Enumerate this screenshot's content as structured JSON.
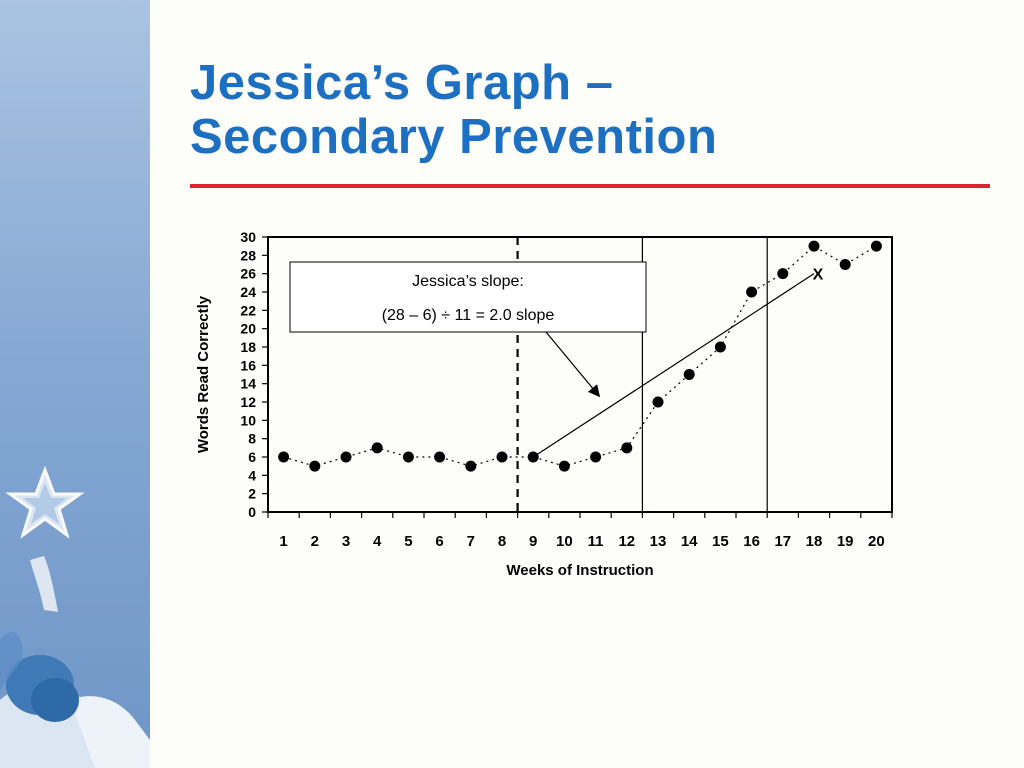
{
  "slide": {
    "title_line1": "Jessica’s Graph –",
    "title_line2": "Secondary Prevention"
  },
  "colors": {
    "title": "#1d6fc2",
    "rule": "#d9262e",
    "sidebar": "#86a9d3",
    "background": "#fdfdf9"
  },
  "chart_data": {
    "type": "line",
    "xlabel": "Weeks of Instruction",
    "ylabel": "Words Read Correctly",
    "x": [
      1,
      2,
      3,
      4,
      5,
      6,
      7,
      8,
      9,
      10,
      11,
      12,
      13,
      14,
      15,
      16,
      17,
      18,
      19,
      20
    ],
    "series": [
      {
        "values": [
          6,
          5,
          6,
          7,
          6,
          6,
          5,
          6,
          6,
          5,
          6,
          7,
          12,
          15,
          18,
          24,
          26,
          29,
          27,
          29
        ]
      }
    ],
    "xlim": [
      0.5,
      20.5
    ],
    "ylim": [
      0,
      30
    ],
    "yticks": [
      0,
      2,
      4,
      6,
      8,
      10,
      12,
      14,
      16,
      18,
      20,
      22,
      24,
      26,
      28,
      30
    ],
    "xticks": [
      1,
      2,
      3,
      4,
      5,
      6,
      7,
      8,
      9,
      10,
      11,
      12,
      13,
      14,
      15,
      16,
      17,
      18,
      19,
      20
    ],
    "phase_change_dashed_x": 8.5,
    "phase_change_solid_x": [
      12.5,
      16.5
    ],
    "trend_line": {
      "from": [
        9,
        6
      ],
      "to": [
        18,
        26
      ]
    },
    "trend_marker": {
      "x": 18,
      "y": 26,
      "label": "X"
    },
    "annotation": {
      "line1": "Jessica’s slope:",
      "line2": "(28 – 6) ÷ 11 = 2.0 slope",
      "arrow_target": [
        11,
        12.5
      ]
    },
    "grid": false
  }
}
